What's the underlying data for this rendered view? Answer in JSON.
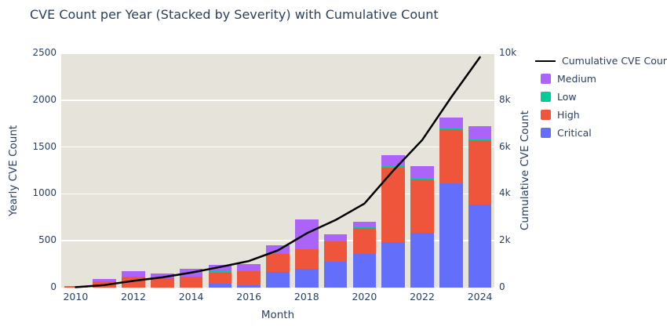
{
  "title": "CVE Count per Year (Stacked by Severity) with Cumulative Count",
  "legend": {
    "line_label": "Cumulative CVE Count",
    "items": [
      {
        "label": "Medium",
        "color": "#ab63fa"
      },
      {
        "label": "Low",
        "color": "#00cc96"
      },
      {
        "label": "High",
        "color": "#ef553b"
      },
      {
        "label": "Critical",
        "color": "#636efa"
      }
    ]
  },
  "colors": {
    "text": "#2a3f5f",
    "plot_background": "#e5e3da",
    "gridline": "#ffffff",
    "cumulative_line": "#000000"
  },
  "chart_data": {
    "type": "bar",
    "subtype": "stacked-bars-with-cumulative-line",
    "title": "CVE Count per Year (Stacked by Severity) with Cumulative Count",
    "xlabel": "Month",
    "ylabel_left": "Yearly CVE Count",
    "ylabel_right": "Cumulative CVE Count",
    "categories": [
      2010,
      2011,
      2012,
      2013,
      2014,
      2015,
      2016,
      2017,
      2018,
      2019,
      2020,
      2021,
      2022,
      2023,
      2024
    ],
    "series": [
      {
        "name": "Critical",
        "color": "#636efa",
        "values": [
          0,
          0,
          0,
          0,
          0,
          40,
          28,
          170,
          200,
          275,
          360,
          487,
          583,
          1108,
          888
        ]
      },
      {
        "name": "High",
        "color": "#ef553b",
        "values": [
          15,
          65,
          120,
          100,
          120,
          120,
          148,
          192,
          210,
          225,
          272,
          795,
          578,
          580,
          685
        ]
      },
      {
        "name": "Low",
        "color": "#00cc96",
        "values": [
          0,
          0,
          0,
          0,
          0,
          18,
          5,
          3,
          5,
          3,
          13,
          12,
          5,
          10,
          5
        ]
      },
      {
        "name": "Medium",
        "color": "#ab63fa",
        "values": [
          3,
          27,
          58,
          50,
          82,
          62,
          72,
          88,
          315,
          65,
          57,
          118,
          132,
          120,
          142
        ]
      }
    ],
    "yearly_totals": [
      18,
      92,
      178,
      150,
      202,
      240,
      253,
      453,
      730,
      568,
      702,
      1412,
      1298,
      1818,
      1720
    ],
    "line_series": {
      "name": "Cumulative CVE Count",
      "color": "#000000",
      "values": [
        18,
        110,
        288,
        438,
        640,
        880,
        1133,
        1586,
        2316,
        2884,
        3586,
        4998,
        6296,
        8114,
        9834
      ]
    },
    "y_left": {
      "min": 0,
      "max": 2500,
      "tick_values": [
        0,
        500,
        1000,
        1500,
        2000,
        2500
      ],
      "tick_labels": [
        "0",
        "500",
        "1000",
        "1500",
        "2000",
        "2500"
      ]
    },
    "y_right": {
      "min": 0,
      "max": 10000,
      "tick_values": [
        0,
        2000,
        4000,
        6000,
        8000,
        10000
      ],
      "tick_labels": [
        "0",
        "2k",
        "4k",
        "6k",
        "8k",
        "10k"
      ]
    },
    "x_tick_labels": [
      "2010",
      "2012",
      "2014",
      "2016",
      "2018",
      "2020",
      "2022",
      "2024"
    ],
    "grid": "horizontal-white",
    "legend_position": "right"
  }
}
